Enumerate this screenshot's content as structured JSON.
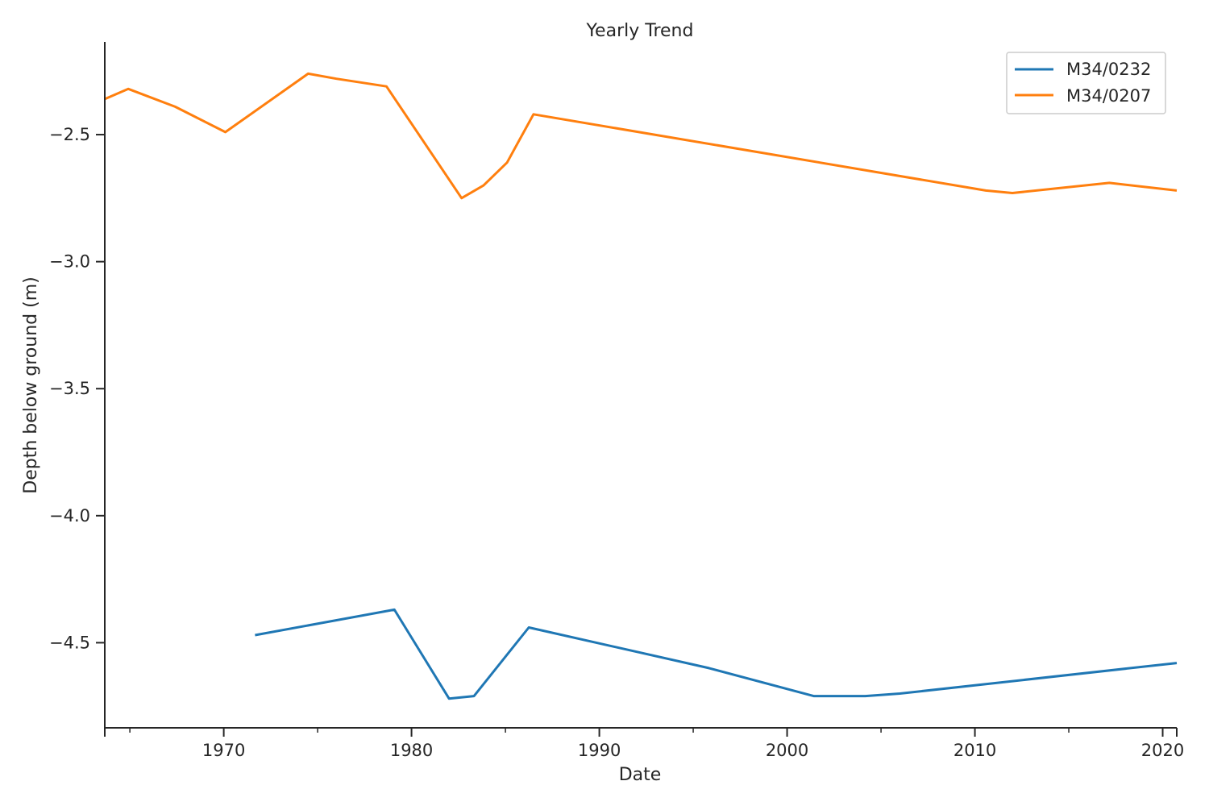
{
  "chart_data": {
    "type": "line",
    "title": "Yearly Trend",
    "xlabel": "Date",
    "ylabel": "Depth below ground (m)",
    "xlim": [
      "1963-09-01",
      "2020-10-01"
    ],
    "ylim": [
      -4.835,
      -2.135
    ],
    "x_ticks": [
      {
        "value": "1970-01-01",
        "label": "1970"
      },
      {
        "value": "1980-01-01",
        "label": "1980"
      },
      {
        "value": "1990-01-01",
        "label": "1990"
      },
      {
        "value": "2000-01-01",
        "label": "2000"
      },
      {
        "value": "2010-01-01",
        "label": "2010"
      },
      {
        "value": "2020-01-01",
        "label": "2020"
      }
    ],
    "x_minor_ticks": [
      "1965-01-01",
      "1975-01-01",
      "1985-01-01",
      "1995-01-01",
      "2005-01-01",
      "2015-01-01"
    ],
    "y_ticks": [
      {
        "value": -2.5,
        "label": "−2.5"
      },
      {
        "value": -3.0,
        "label": "−3.0"
      },
      {
        "value": -3.5,
        "label": "−3.5"
      },
      {
        "value": -4.0,
        "label": "−4.0"
      },
      {
        "value": -4.5,
        "label": "−4.5"
      }
    ],
    "grid": false,
    "legend_position": "top-right",
    "series": [
      {
        "name": "M34/0232",
        "color": "#1f77b4",
        "points": [
          {
            "x": "1971-09-01",
            "y": -4.47
          },
          {
            "x": "1979-02-01",
            "y": -4.37
          },
          {
            "x": "1982-01-01",
            "y": -4.72
          },
          {
            "x": "1983-05-01",
            "y": -4.71
          },
          {
            "x": "1986-04-01",
            "y": -4.44
          },
          {
            "x": "1995-11-01",
            "y": -4.6
          },
          {
            "x": "2001-06-01",
            "y": -4.71
          },
          {
            "x": "2004-03-01",
            "y": -4.71
          },
          {
            "x": "2006-01-01",
            "y": -4.7
          },
          {
            "x": "2020-10-01",
            "y": -4.58
          }
        ]
      },
      {
        "name": "M34/0207",
        "color": "#ff7f0e",
        "points": [
          {
            "x": "1963-09-01",
            "y": -2.36
          },
          {
            "x": "1964-12-01",
            "y": -2.32
          },
          {
            "x": "1967-06-01",
            "y": -2.39
          },
          {
            "x": "1970-02-01",
            "y": -2.49
          },
          {
            "x": "1974-07-01",
            "y": -2.26
          },
          {
            "x": "1976-01-01",
            "y": -2.28
          },
          {
            "x": "1978-09-01",
            "y": -2.31
          },
          {
            "x": "1982-09-01",
            "y": -2.75
          },
          {
            "x": "1983-11-01",
            "y": -2.7
          },
          {
            "x": "1985-02-01",
            "y": -2.61
          },
          {
            "x": "1986-07-01",
            "y": -2.42
          },
          {
            "x": "2010-08-01",
            "y": -2.72
          },
          {
            "x": "2012-01-01",
            "y": -2.73
          },
          {
            "x": "2017-03-01",
            "y": -2.69
          },
          {
            "x": "2020-10-01",
            "y": -2.72
          }
        ]
      }
    ]
  }
}
